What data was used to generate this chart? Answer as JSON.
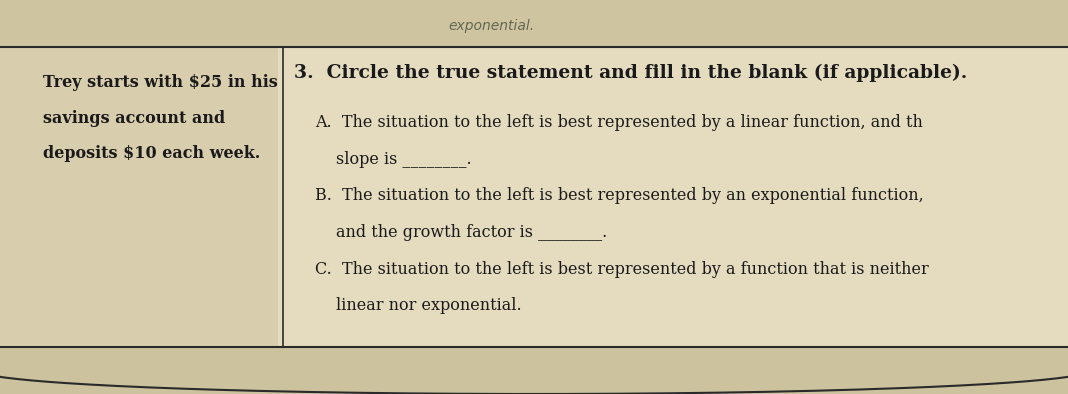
{
  "bg_color_top": "#c8b89a",
  "bg_color_main": "#d4c8a8",
  "paper_color": "#e8dfc0",
  "paper_color_right": "#ddd5b5",
  "top_text": "exponential.",
  "left_col_line1": "Trey starts with $25 in his",
  "left_col_line2": "savings account and",
  "left_col_line3": "deposits $10 each week.",
  "question_header": "3.  Circle the true statement and fill in the blank (if applicable).",
  "option_A_line1": "A.  The situation to the left is best represented by a linear function, and th",
  "option_A_line2": "slope is ________.",
  "option_B_line1": "B.  The situation to the left is best represented by an exponential function,",
  "option_B_line2": "and the growth factor is ________.",
  "option_C_line1": "C.  The situation to the left is best represented by a function that is neither",
  "option_C_line2": "linear nor exponential.",
  "font_size_header": 13.5,
  "font_size_main": 11.5,
  "text_color": "#1a1a1a",
  "line_color": "#2a2a2a"
}
